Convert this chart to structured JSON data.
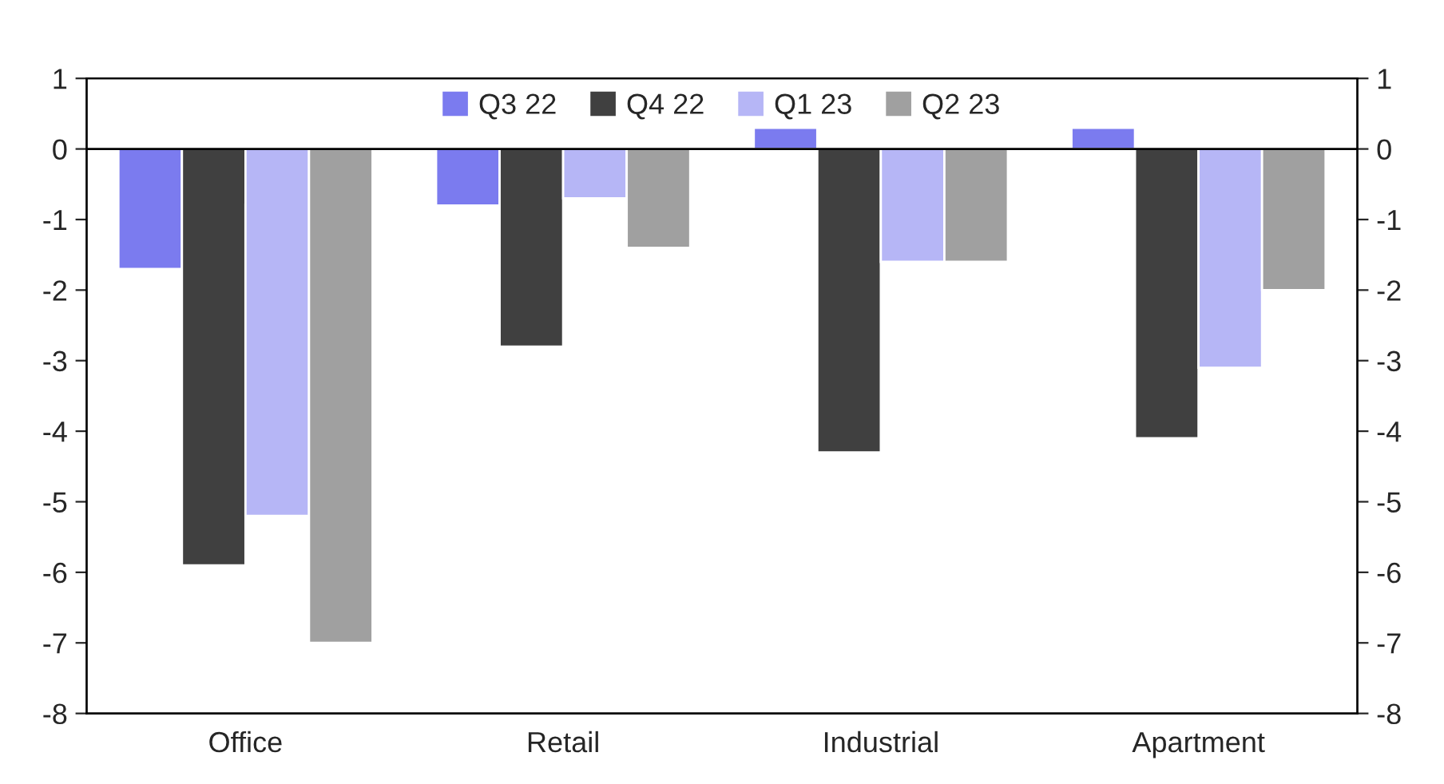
{
  "chart_data": {
    "type": "bar",
    "categories": [
      "Office",
      "Retail",
      "Industrial",
      "Apartment"
    ],
    "series": [
      {
        "name": "Q3 22",
        "color": "#7b7bef",
        "values": [
          -1.7,
          -0.8,
          0.3,
          0.3
        ]
      },
      {
        "name": "Q4 22",
        "color": "#404040",
        "values": [
          -5.9,
          -2.8,
          -4.3,
          -4.1
        ]
      },
      {
        "name": "Q1 23",
        "color": "#b6b6f6",
        "values": [
          -5.2,
          -0.7,
          -1.6,
          -3.1
        ]
      },
      {
        "name": "Q2 23",
        "color": "#a0a0a0",
        "values": [
          -7.0,
          -1.4,
          -1.6,
          -2.0
        ]
      }
    ],
    "ylim": [
      -8,
      1
    ],
    "yticks": [
      -8,
      -7,
      -6,
      -5,
      -4,
      -3,
      -2,
      -1,
      0,
      1
    ],
    "y2lim": [
      -8,
      1
    ],
    "y2ticks": [
      -8,
      -7,
      -6,
      -5,
      -4,
      -3,
      -2,
      -1,
      0,
      1
    ],
    "ref_lines": [
      {
        "axis": "y",
        "value": 0,
        "color": "#000000"
      }
    ],
    "grid": false,
    "legend": "top"
  }
}
